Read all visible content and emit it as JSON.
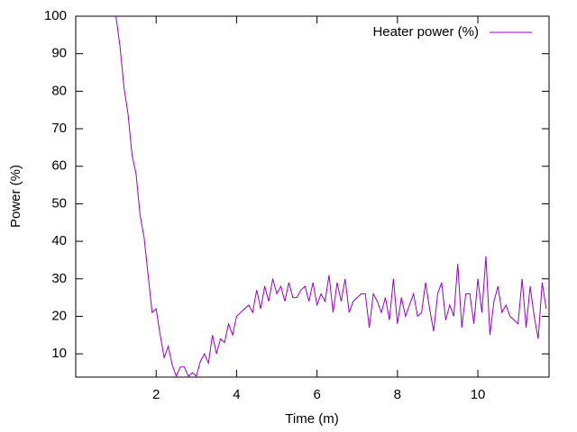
{
  "chart_data": {
    "type": "line",
    "xlabel": "Time (m)",
    "ylabel": "Power (%)",
    "x": [
      1.0,
      1.1,
      1.2,
      1.3,
      1.4,
      1.5,
      1.6,
      1.7,
      1.8,
      1.9,
      2.0,
      2.1,
      2.2,
      2.3,
      2.4,
      2.5,
      2.6,
      2.7,
      2.8,
      2.9,
      3.0,
      3.1,
      3.2,
      3.3,
      3.4,
      3.5,
      3.6,
      3.7,
      3.8,
      3.9,
      4.0,
      4.1,
      4.2,
      4.3,
      4.4,
      4.5,
      4.6,
      4.7,
      4.8,
      4.9,
      5.0,
      5.1,
      5.2,
      5.3,
      5.4,
      5.5,
      5.6,
      5.7,
      5.8,
      5.9,
      6.0,
      6.1,
      6.2,
      6.3,
      6.4,
      6.5,
      6.6,
      6.7,
      6.8,
      6.9,
      7.0,
      7.1,
      7.2,
      7.3,
      7.4,
      7.5,
      7.6,
      7.7,
      7.8,
      7.9,
      8.0,
      8.1,
      8.2,
      8.3,
      8.4,
      8.5,
      8.6,
      8.7,
      8.8,
      8.9,
      9.0,
      9.1,
      9.2,
      9.3,
      9.4,
      9.5,
      9.6,
      9.7,
      9.8,
      9.9,
      10.0,
      10.1,
      10.2,
      10.3,
      10.4,
      10.5,
      10.6,
      10.7,
      10.8,
      10.9,
      11.0,
      11.1,
      11.2,
      11.3,
      11.4,
      11.5,
      11.6,
      11.7
    ],
    "series": [
      {
        "name": "Heater power (%)",
        "color": "#9400d3",
        "values": [
          100,
          92,
          81,
          74,
          63,
          58,
          47,
          41,
          31,
          21,
          22,
          15,
          9,
          12,
          7,
          4,
          6.5,
          6.5,
          4,
          5,
          4,
          8,
          10,
          7.5,
          15,
          10,
          14,
          13,
          18,
          15,
          20,
          21,
          22,
          23,
          21,
          27,
          22,
          28,
          24,
          30,
          26,
          28,
          24,
          29,
          25,
          25,
          27,
          28,
          24,
          29,
          23,
          26,
          24,
          31,
          21,
          29,
          24,
          30,
          21,
          24,
          25,
          26,
          26,
          17,
          26,
          24,
          21,
          25,
          19,
          30,
          18,
          25,
          20,
          23,
          26,
          20,
          21,
          29,
          22,
          16,
          26,
          29,
          19,
          23,
          20,
          34,
          17,
          26,
          26,
          18,
          30,
          21,
          36,
          15,
          24,
          28,
          21,
          23,
          20,
          19,
          18,
          30,
          17,
          28,
          20,
          14,
          29,
          22
        ]
      }
    ],
    "xlim": [
      0,
      11.77
    ],
    "ylim": [
      3.8,
      100
    ],
    "xticks": [
      2,
      4,
      6,
      8,
      10
    ],
    "yticks": [
      10,
      20,
      30,
      40,
      50,
      60,
      70,
      80,
      90,
      100
    ],
    "legend": "top-right"
  }
}
